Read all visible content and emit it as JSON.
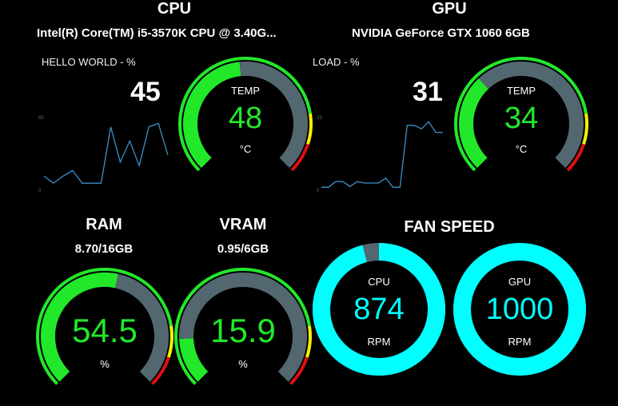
{
  "cpu": {
    "title": "CPU",
    "model": "Intel(R) Core(TM) i5-3570K CPU @ 3.40G...",
    "usage_label": "HELLO WORLD - %",
    "usage_value": "45",
    "graph_top_label": "65",
    "graph_bottom_label": "0",
    "graph": [
      0.2,
      0.1,
      0.2,
      0.28,
      0.1,
      0.1,
      0.1,
      0.9,
      0.4,
      0.7,
      0.35,
      0.9,
      0.95,
      0.5
    ],
    "temp_label": "TEMP",
    "temp_value": "48",
    "temp_unit": "°C",
    "temp_fraction": 0.48
  },
  "gpu": {
    "title": "GPU",
    "model": "NVIDIA GeForce GTX 1060 6GB",
    "load_label": "LOAD - %",
    "load_value": "31",
    "graph_top_label": "33",
    "graph_bottom_label": "0",
    "graph": [
      0.02,
      0.02,
      0.1,
      0.1,
      0.03,
      0.1,
      0.08,
      0.08,
      0.08,
      0.15,
      0.02,
      0.02,
      0.9,
      0.9,
      0.85,
      0.95,
      0.8,
      0.8
    ],
    "temp_label": "TEMP",
    "temp_value": "34",
    "temp_unit": "°C",
    "temp_fraction": 0.34
  },
  "ram": {
    "title": "RAM",
    "usage": "8.70/16GB",
    "value": "54.5",
    "unit": "%",
    "fraction": 0.545
  },
  "vram": {
    "title": "VRAM",
    "usage": "0.95/6GB",
    "value": "15.9",
    "unit": "%",
    "fraction": 0.159
  },
  "fan": {
    "title": "FAN SPEED",
    "cpu_label": "CPU",
    "cpu_value": "874",
    "cpu_unit": "RPM",
    "cpu_fraction": 0.96,
    "gpu_label": "GPU",
    "gpu_value": "1000",
    "gpu_unit": "RPM",
    "gpu_fraction": 1.0
  },
  "colors": {
    "green": "#22e82a",
    "grey": "#536770",
    "yellow": "#f5f000",
    "red": "#e01010",
    "cyan": "#00ffff",
    "graph_line": "#3d8fc8"
  }
}
